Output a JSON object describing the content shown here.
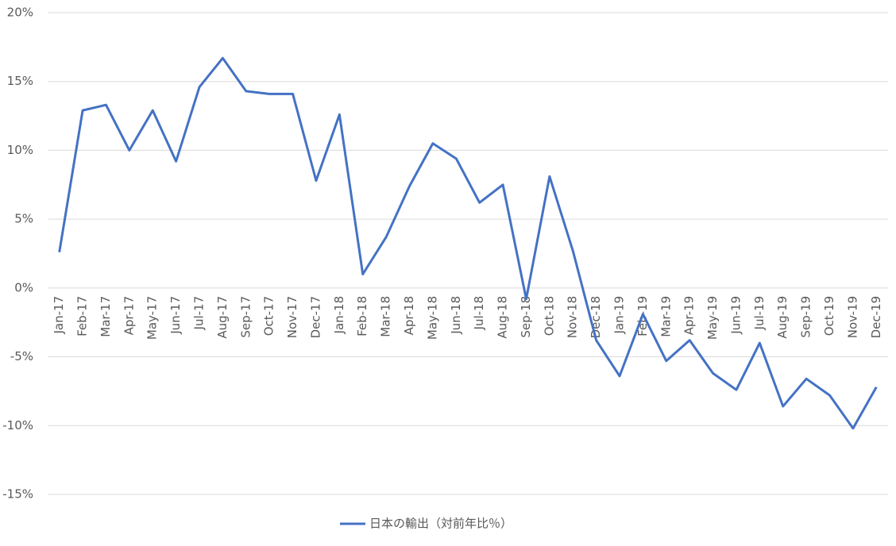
{
  "chart_data": {
    "type": "line",
    "categories": [
      "Jan-17",
      "Feb-17",
      "Mar-17",
      "Apr-17",
      "May-17",
      "Jun-17",
      "Jul-17",
      "Aug-17",
      "Sep-17",
      "Oct-17",
      "Nov-17",
      "Dec-17",
      "Jan-18",
      "Feb-18",
      "Mar-18",
      "Apr-18",
      "May-18",
      "Jun-18",
      "Jul-18",
      "Aug-18",
      "Sep-18",
      "Oct-18",
      "Nov-18",
      "Dec-18",
      "Jan-19",
      "Feb-19",
      "Mar-19",
      "Apr-19",
      "May-19",
      "Jun-19",
      "Jul-19",
      "Aug-19",
      "Sep-19",
      "Oct-19",
      "Nov-19",
      "Dec-19"
    ],
    "series": [
      {
        "name": "日本の輸出（対前年比％）",
        "color": "#4472c4",
        "values": [
          2.6,
          12.9,
          13.3,
          10.0,
          12.9,
          9.2,
          14.6,
          16.7,
          14.3,
          14.1,
          14.1,
          7.8,
          12.6,
          1.0,
          3.7,
          7.4,
          10.5,
          9.4,
          6.2,
          7.5,
          -0.8,
          8.1,
          2.7,
          -3.8,
          -6.4,
          -1.9,
          -5.3,
          -3.8,
          -6.2,
          -7.4,
          -4.0,
          -8.6,
          -6.6,
          -7.8,
          -10.2,
          -7.2
        ]
      }
    ],
    "ylim": [
      -15,
      20
    ],
    "yticks": [
      {
        "value": -15,
        "label": "-15%"
      },
      {
        "value": -10,
        "label": "-10%"
      },
      {
        "value": -5,
        "label": "-5%"
      },
      {
        "value": 0,
        "label": "0%"
      },
      {
        "value": 5,
        "label": "5%"
      },
      {
        "value": 10,
        "label": "10%"
      },
      {
        "value": 15,
        "label": "15%"
      },
      {
        "value": 20,
        "label": "20%"
      }
    ],
    "grid": true
  }
}
